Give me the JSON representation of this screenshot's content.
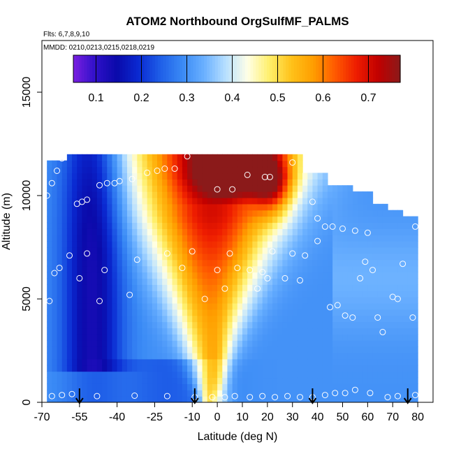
{
  "chart_data": {
    "type": "heatmap",
    "title": "ATOM2 Northbound OrgSulfMF_PALMS",
    "subtitle_flights": "Flts: 6,7,8,9,10",
    "subtitle_dates": "MMDD: 0210,0213,0215,0218,0219",
    "xlabel": "Latitude (deg N)",
    "ylabel": "Altitude (m)",
    "xlim": [
      -70,
      82
    ],
    "ylim": [
      0,
      17500
    ],
    "xticks": [
      -70,
      -55,
      -40,
      -25,
      -10,
      0,
      10,
      20,
      30,
      40,
      50,
      60,
      70,
      80
    ],
    "xtick_labels": [
      "-70",
      "-55",
      "-40",
      "-25",
      "-10",
      "0",
      "10",
      "20",
      "30",
      "40",
      "50",
      "60",
      "70",
      "80"
    ],
    "yticks": [
      0,
      5000,
      10000,
      15000
    ],
    "ytick_labels": [
      "0",
      "5000",
      "10000",
      "15000"
    ],
    "colorbar": {
      "range": [
        0.05,
        0.77
      ],
      "ticks": [
        0.1,
        0.2,
        0.3,
        0.4,
        0.5,
        0.6,
        0.7
      ],
      "tick_labels": [
        "0.1",
        "0.2",
        "0.3",
        "0.4",
        "0.5",
        "0.6",
        "0.7"
      ],
      "colors": [
        "#7a1fe0",
        "#2f10c8",
        "#0a0aaa",
        "#0a2ad2",
        "#1f5fe8",
        "#3a8af5",
        "#6ab0ff",
        "#b8e0ff",
        "#ffffe6",
        "#ffef6a",
        "#ffc21a",
        "#ff9e00",
        "#ff5a00",
        "#ee1c00",
        "#c00000",
        "#8b1a1a"
      ]
    },
    "field_structure": {
      "lat_range": [
        -68,
        80
      ],
      "alt_range": [
        0,
        12000
      ],
      "features": [
        {
          "description": "low values south",
          "lat": [
            -68,
            -40
          ],
          "alt": [
            2000,
            11000
          ],
          "value": 0.13
        },
        {
          "description": "high upper tropical band",
          "lat": [
            -20,
            30
          ],
          "alt": [
            10500,
            12000
          ],
          "value": 0.68
        },
        {
          "description": "tropical v-shaped maximum",
          "lat": [
            -30,
            20
          ],
          "alt": [
            5000,
            10000
          ],
          "value": 0.55
        },
        {
          "description": "near-equator low-altitude plume",
          "lat": [
            -5,
            5
          ],
          "alt": [
            0,
            4000
          ],
          "value": 0.42
        }
      ]
    },
    "sample_points": [
      {
        "lat": -66,
        "alt": 300
      },
      {
        "lat": -62,
        "alt": 350
      },
      {
        "lat": -58,
        "alt": 400
      },
      {
        "lat": -48,
        "alt": 300
      },
      {
        "lat": -33,
        "alt": 320
      },
      {
        "lat": -20,
        "alt": 300
      },
      {
        "lat": -9,
        "alt": 250
      },
      {
        "lat": -2,
        "alt": 250
      },
      {
        "lat": 3,
        "alt": 250
      },
      {
        "lat": 7,
        "alt": 300
      },
      {
        "lat": 13,
        "alt": 250
      },
      {
        "lat": 18,
        "alt": 300
      },
      {
        "lat": 23,
        "alt": 250
      },
      {
        "lat": 28,
        "alt": 300
      },
      {
        "lat": 33,
        "alt": 250
      },
      {
        "lat": 38,
        "alt": 250
      },
      {
        "lat": 43,
        "alt": 350
      },
      {
        "lat": 47,
        "alt": 450
      },
      {
        "lat": 51,
        "alt": 450
      },
      {
        "lat": 55,
        "alt": 600
      },
      {
        "lat": 61,
        "alt": 450
      },
      {
        "lat": 68,
        "alt": 250
      },
      {
        "lat": 72,
        "alt": 300
      },
      {
        "lat": 79,
        "alt": 350
      },
      {
        "lat": -67,
        "alt": 4900
      },
      {
        "lat": -65,
        "alt": 6250
      },
      {
        "lat": -63,
        "alt": 6500
      },
      {
        "lat": -59,
        "alt": 7100
      },
      {
        "lat": -55,
        "alt": 6000
      },
      {
        "lat": -52,
        "alt": 7200
      },
      {
        "lat": -45,
        "alt": 6400
      },
      {
        "lat": -47,
        "alt": 4900
      },
      {
        "lat": -35,
        "alt": 5200
      },
      {
        "lat": -32,
        "alt": 6900
      },
      {
        "lat": -20,
        "alt": 7200
      },
      {
        "lat": -14,
        "alt": 6500
      },
      {
        "lat": -10,
        "alt": 7300
      },
      {
        "lat": -5,
        "alt": 5000
      },
      {
        "lat": 0,
        "alt": 6400
      },
      {
        "lat": 3,
        "alt": 5500
      },
      {
        "lat": 5,
        "alt": 7200
      },
      {
        "lat": 8,
        "alt": 6500
      },
      {
        "lat": 13,
        "alt": 6400
      },
      {
        "lat": 16,
        "alt": 5500
      },
      {
        "lat": 18,
        "alt": 6300
      },
      {
        "lat": 20,
        "alt": 6000
      },
      {
        "lat": 22,
        "alt": 7300
      },
      {
        "lat": 27,
        "alt": 6000
      },
      {
        "lat": 30,
        "alt": 7200
      },
      {
        "lat": 33,
        "alt": 5900
      },
      {
        "lat": 35,
        "alt": 7100
      },
      {
        "lat": 40,
        "alt": 7800
      },
      {
        "lat": 43,
        "alt": 8500
      },
      {
        "lat": 46,
        "alt": 8500
      },
      {
        "lat": 50,
        "alt": 8400
      },
      {
        "lat": 55,
        "alt": 8300
      },
      {
        "lat": 60,
        "alt": 8200
      },
      {
        "lat": 45,
        "alt": 4600
      },
      {
        "lat": 48,
        "alt": 4700
      },
      {
        "lat": 51,
        "alt": 4200
      },
      {
        "lat": 54,
        "alt": 4100
      },
      {
        "lat": 57,
        "alt": 6000
      },
      {
        "lat": 59,
        "alt": 6800
      },
      {
        "lat": 62,
        "alt": 6400
      },
      {
        "lat": 64,
        "alt": 4100
      },
      {
        "lat": 66,
        "alt": 3400
      },
      {
        "lat": 70,
        "alt": 5100
      },
      {
        "lat": 72,
        "alt": 5000
      },
      {
        "lat": 74,
        "alt": 6700
      },
      {
        "lat": 78,
        "alt": 4100
      },
      {
        "lat": 79,
        "alt": 8500
      },
      {
        "lat": 75,
        "alt": 9400
      },
      {
        "lat": -68,
        "alt": 10000
      },
      {
        "lat": -66,
        "alt": 10600
      },
      {
        "lat": -64,
        "alt": 11200
      },
      {
        "lat": -62,
        "alt": 11800
      },
      {
        "lat": -56,
        "alt": 9600
      },
      {
        "lat": -54,
        "alt": 9700
      },
      {
        "lat": -52,
        "alt": 9800
      },
      {
        "lat": -47,
        "alt": 10500
      },
      {
        "lat": -44,
        "alt": 10600
      },
      {
        "lat": -41,
        "alt": 10600
      },
      {
        "lat": -39,
        "alt": 10700
      },
      {
        "lat": -34,
        "alt": 10800
      },
      {
        "lat": -28,
        "alt": 11100
      },
      {
        "lat": -24,
        "alt": 11200
      },
      {
        "lat": -21,
        "alt": 11300
      },
      {
        "lat": -17,
        "alt": 11300
      },
      {
        "lat": -12,
        "alt": 11900
      },
      {
        "lat": 0,
        "alt": 10300
      },
      {
        "lat": 6,
        "alt": 10300
      },
      {
        "lat": 12,
        "alt": 11000
      },
      {
        "lat": 19,
        "alt": 10900
      },
      {
        "lat": 21,
        "alt": 10900
      },
      {
        "lat": 30,
        "alt": 11600
      },
      {
        "lat": 38,
        "alt": 9700
      },
      {
        "lat": 40,
        "alt": 8900
      }
    ],
    "flight_markers_lat": [
      -55,
      -9,
      38,
      76
    ]
  }
}
